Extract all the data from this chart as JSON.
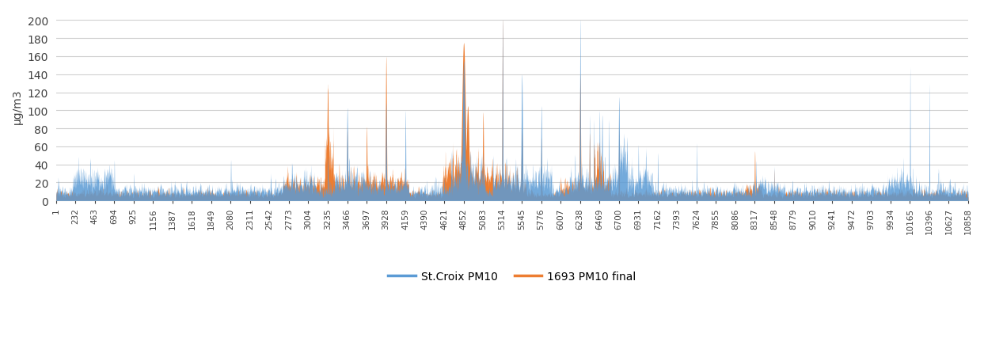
{
  "n": 10858,
  "xtick_labels": [
    "1",
    "232",
    "463",
    "694",
    "925",
    "1156",
    "1387",
    "1618",
    "1849",
    "2080",
    "2311",
    "2542",
    "2773",
    "3004",
    "3235",
    "3466",
    "3697",
    "3928",
    "4159",
    "4390",
    "4621",
    "4852",
    "5083",
    "5314",
    "5545",
    "5776",
    "6007",
    "6238",
    "6469",
    "6700",
    "6931",
    "7162",
    "7393",
    "7624",
    "7855",
    "8086",
    "8317",
    "8548",
    "8779",
    "9010",
    "9241",
    "9472",
    "9703",
    "9934",
    "10165",
    "10396",
    "10627",
    "10858"
  ],
  "yticks": [
    0,
    20,
    40,
    60,
    80,
    100,
    120,
    140,
    160,
    180,
    200
  ],
  "ylabel": "μg/m3",
  "stcroix_color": "#5B9BD5",
  "fred_color": "#ED7D31",
  "legend_stcroix": "St.Croix PM10",
  "legend_fred": "1693 PM10 final",
  "ylim": [
    0,
    210
  ],
  "background_color": "#ffffff",
  "grid_color": "#d0d0d0"
}
